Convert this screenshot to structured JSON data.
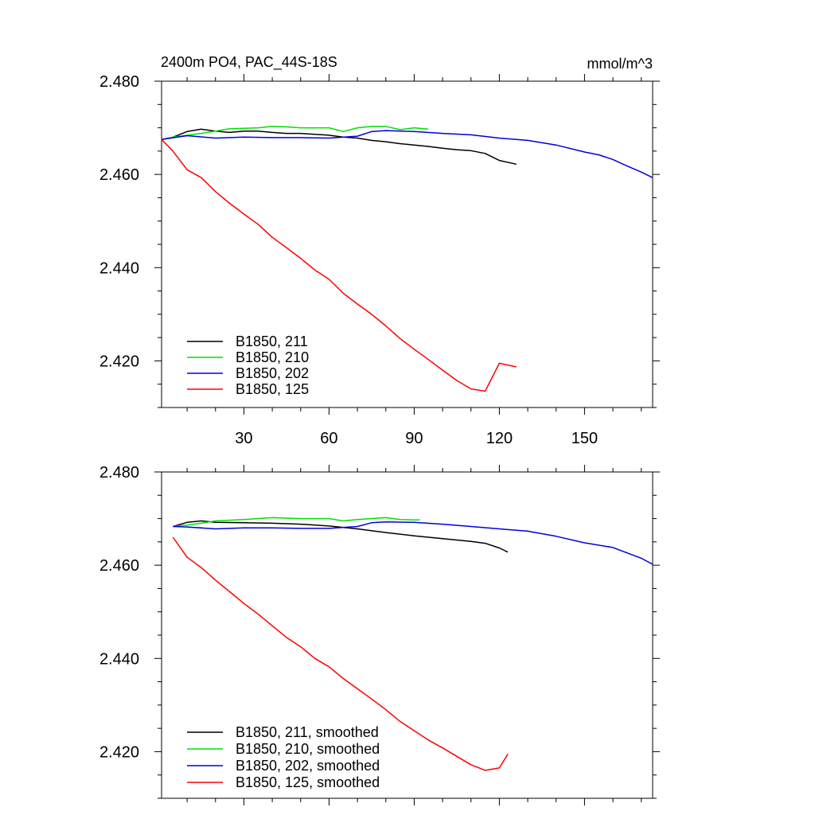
{
  "figure": {
    "title": "2400m PO4, PAC_44S-18S",
    "units": "mmol/m^3"
  },
  "chart_data": [
    {
      "type": "line",
      "title": "2400m PO4, PAC_44S-18S",
      "units": "mmol/m^3",
      "xlim": [
        1,
        174
      ],
      "ylim": [
        2.41,
        2.48
      ],
      "x_ticks": [
        30,
        60,
        90,
        120,
        150
      ],
      "x_tick_labels": [
        "30",
        "60",
        "90",
        "120",
        "150"
      ],
      "y_ticks": [
        2.42,
        2.44,
        2.46,
        2.48
      ],
      "y_tick_labels": [
        "2.420",
        "2.440",
        "2.460",
        "2.480"
      ],
      "legend_position": "bottom-left",
      "series": [
        {
          "name": "B1850, 211",
          "color": "#000000",
          "x": [
            1,
            5,
            10,
            15,
            20,
            25,
            30,
            35,
            40,
            45,
            50,
            55,
            60,
            65,
            70,
            75,
            80,
            85,
            90,
            95,
            100,
            105,
            110,
            115,
            120,
            126
          ],
          "y": [
            2.4675,
            2.468,
            2.4692,
            2.4697,
            2.4693,
            2.469,
            2.4693,
            2.4693,
            2.469,
            2.4688,
            2.4688,
            2.4686,
            2.4684,
            2.468,
            2.4678,
            2.4673,
            2.467,
            2.4666,
            2.4663,
            2.466,
            2.4656,
            2.4653,
            2.4651,
            2.4645,
            2.463,
            2.4622
          ]
        },
        {
          "name": "B1850, 210",
          "color": "#00e000",
          "x": [
            1,
            5,
            10,
            15,
            20,
            25,
            30,
            35,
            40,
            45,
            50,
            55,
            60,
            65,
            70,
            75,
            80,
            85,
            90,
            95
          ],
          "y": [
            2.4675,
            2.468,
            2.4684,
            2.4688,
            2.4693,
            2.4698,
            2.4699,
            2.47,
            2.4703,
            2.4702,
            2.47,
            2.47,
            2.47,
            2.4692,
            2.47,
            2.4703,
            2.4703,
            2.4696,
            2.47,
            2.4697
          ]
        },
        {
          "name": "B1850, 202",
          "color": "#0000e0",
          "x": [
            1,
            10,
            20,
            30,
            40,
            50,
            60,
            70,
            75,
            80,
            90,
            100,
            110,
            120,
            130,
            140,
            150,
            155,
            160,
            165,
            170,
            174
          ],
          "y": [
            2.4675,
            2.4683,
            2.4678,
            2.468,
            2.4679,
            2.4679,
            2.4678,
            2.4682,
            2.4692,
            2.4694,
            2.4692,
            2.4688,
            2.4685,
            2.4678,
            2.4673,
            2.4663,
            2.4648,
            2.4642,
            2.4632,
            2.4618,
            2.4605,
            2.4593
          ]
        },
        {
          "name": "B1850, 125",
          "color": "#ff0000",
          "x": [
            1,
            5,
            10,
            15,
            20,
            25,
            30,
            35,
            40,
            45,
            50,
            55,
            60,
            65,
            70,
            75,
            80,
            85,
            90,
            95,
            100,
            105,
            110,
            115,
            120,
            126
          ],
          "y": [
            2.4675,
            2.465,
            2.461,
            2.4593,
            2.4563,
            2.4538,
            2.4515,
            2.4493,
            2.4465,
            2.4443,
            2.442,
            2.4395,
            2.4375,
            2.4345,
            2.4322,
            2.43,
            2.4275,
            2.4248,
            2.4225,
            2.4203,
            2.418,
            2.4158,
            2.414,
            2.4135,
            2.4195,
            2.4187
          ]
        }
      ]
    },
    {
      "type": "line",
      "xlim": [
        1,
        174
      ],
      "ylim": [
        2.41,
        2.48
      ],
      "x_ticks": [
        30,
        60,
        90,
        120,
        150
      ],
      "y_ticks": [
        2.42,
        2.44,
        2.46,
        2.48
      ],
      "y_tick_labels": [
        "2.420",
        "2.440",
        "2.460",
        "2.480"
      ],
      "legend_position": "bottom-left",
      "series": [
        {
          "name": "B1850, 211, smoothed",
          "color": "#000000",
          "x": [
            5,
            10,
            15,
            20,
            30,
            40,
            50,
            60,
            70,
            80,
            90,
            100,
            110,
            115,
            120,
            123
          ],
          "y": [
            2.4683,
            2.4692,
            2.4695,
            2.4692,
            2.4691,
            2.469,
            2.4688,
            2.4684,
            2.4678,
            2.467,
            2.4663,
            2.4657,
            2.4651,
            2.4647,
            2.4637,
            2.4628
          ]
        },
        {
          "name": "B1850, 210, smoothed",
          "color": "#00e000",
          "x": [
            5,
            10,
            15,
            20,
            30,
            40,
            50,
            60,
            65,
            70,
            80,
            85,
            90,
            92
          ],
          "y": [
            2.4683,
            2.4686,
            2.469,
            2.4695,
            2.4698,
            2.4702,
            2.47,
            2.47,
            2.4695,
            2.4698,
            2.4702,
            2.4698,
            2.4697,
            2.4697
          ]
        },
        {
          "name": "B1850, 202, smoothed",
          "color": "#0000e0",
          "x": [
            5,
            10,
            20,
            30,
            40,
            50,
            60,
            70,
            75,
            80,
            90,
            100,
            110,
            120,
            130,
            140,
            150,
            160,
            170,
            174
          ],
          "y": [
            2.4683,
            2.4682,
            2.4678,
            2.468,
            2.468,
            2.4679,
            2.4679,
            2.4683,
            2.4691,
            2.4693,
            2.4692,
            2.4688,
            2.4683,
            2.4678,
            2.4673,
            2.4662,
            2.4648,
            2.4638,
            2.4615,
            2.4602
          ]
        },
        {
          "name": "B1850, 125, smoothed",
          "color": "#ff0000",
          "x": [
            5,
            10,
            15,
            20,
            25,
            30,
            35,
            40,
            45,
            50,
            55,
            60,
            65,
            70,
            75,
            80,
            85,
            90,
            95,
            100,
            105,
            110,
            115,
            120,
            123
          ],
          "y": [
            2.466,
            2.4617,
            2.4595,
            2.4568,
            2.4543,
            2.4518,
            2.4495,
            2.447,
            2.4445,
            2.4425,
            2.44,
            2.4382,
            2.4357,
            2.4335,
            2.4313,
            2.429,
            2.4265,
            2.4245,
            2.4225,
            2.4208,
            2.419,
            2.4172,
            2.416,
            2.4165,
            2.4195
          ]
        }
      ]
    }
  ]
}
